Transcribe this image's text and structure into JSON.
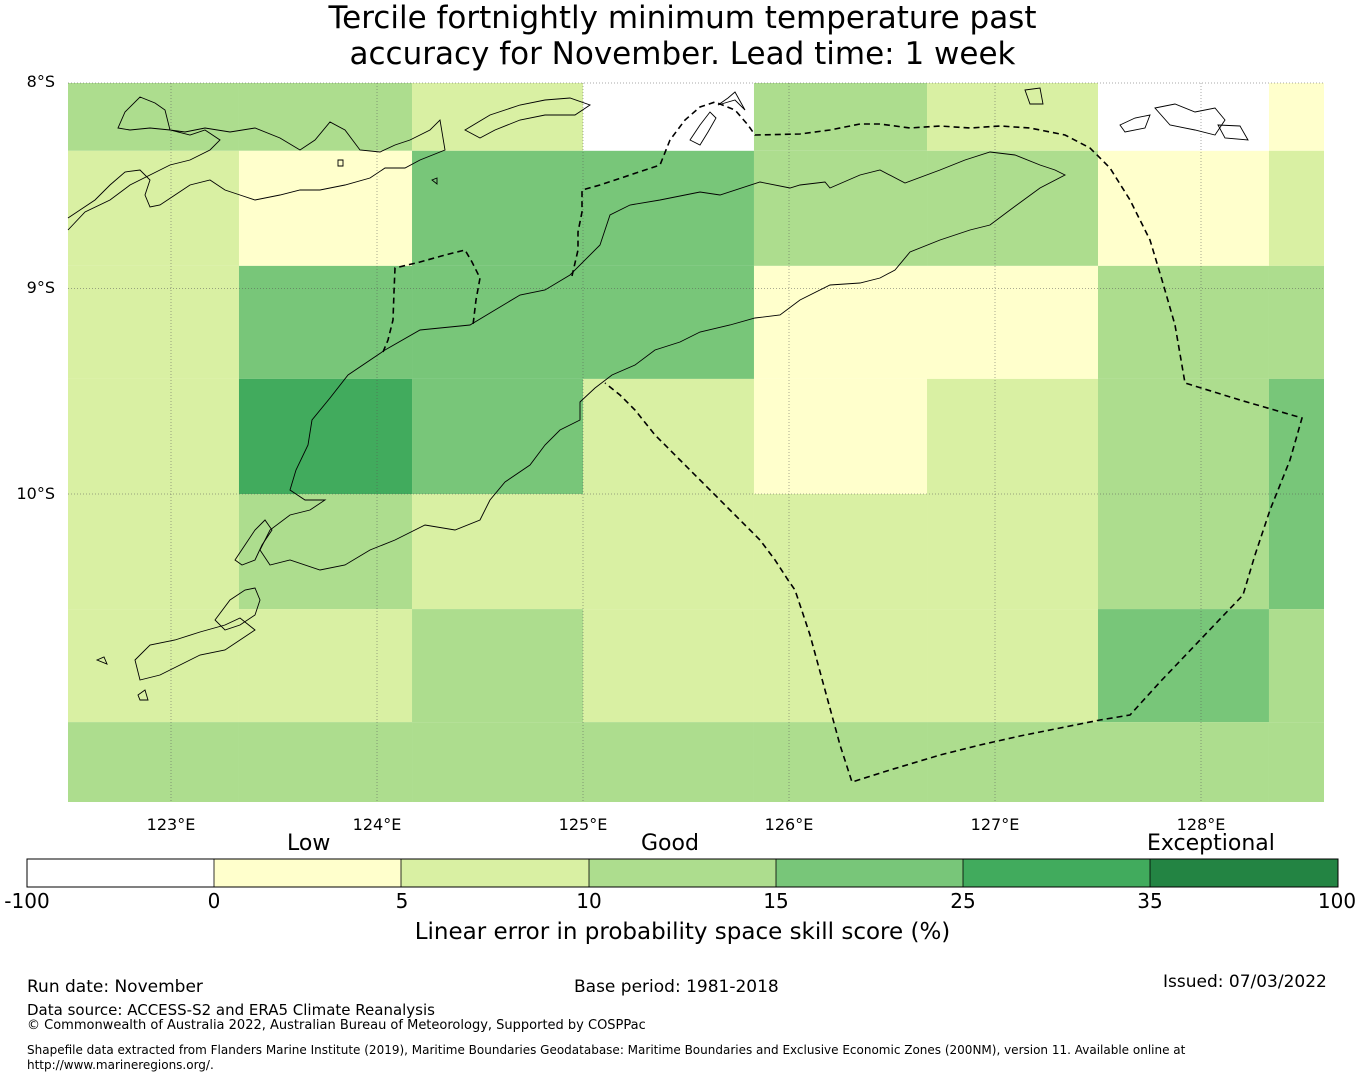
{
  "title": {
    "line1": "Tercile fortnightly minimum temperature past",
    "line2": "accuracy for November. Lead time: 1 week"
  },
  "colors": {
    "white": "#ffffff",
    "c0_5": "#ffffcc",
    "c5_10": "#d9f0a3",
    "c10_15": "#addd8e",
    "c15_25": "#78c679",
    "c25_35": "#41ab5d",
    "c35_100": "#238443"
  },
  "chart_data": {
    "type": "heatmap",
    "x_axis": {
      "range_deg_e": [
        122.5,
        128.6
      ],
      "ticks": [
        123,
        124,
        125,
        126,
        127,
        128
      ],
      "tick_labels": [
        "123°E",
        "124°E",
        "125°E",
        "126°E",
        "127°E",
        "128°E"
      ]
    },
    "y_axis": {
      "range_deg": [
        -8,
        -11.5
      ],
      "ticks": [
        -8,
        -9,
        -10
      ],
      "tick_labels": [
        "8°S",
        "9°S",
        "10°S"
      ]
    },
    "cell_size_deg": 0.833,
    "lon_edges": [
      122.5,
      123.33,
      124.17,
      125.0,
      125.83,
      126.67,
      127.5,
      128.33,
      128.6
    ],
    "lat_edges": [
      -8.0,
      -8.33,
      -8.89,
      -9.44,
      -10.0,
      -10.56,
      -11.11,
      -11.5
    ],
    "grid_values_skill_pct": [
      [
        12.5,
        12.5,
        7.5,
        null,
        12.5,
        7.5,
        null,
        2.5
      ],
      [
        7.5,
        2.5,
        20,
        20,
        12.5,
        12.5,
        2.5,
        7.5
      ],
      [
        7.5,
        20,
        20,
        20,
        2.5,
        2.5,
        12.5,
        12.5
      ],
      [
        7.5,
        30,
        20,
        7.5,
        2.5,
        7.5,
        12.5,
        20
      ],
      [
        7.5,
        12.5,
        7.5,
        7.5,
        7.5,
        7.5,
        12.5,
        20
      ],
      [
        7.5,
        7.5,
        12.5,
        7.5,
        7.5,
        7.5,
        20,
        12.5
      ],
      [
        12.5,
        12.5,
        12.5,
        12.5,
        12.5,
        12.5,
        12.5,
        12.5
      ]
    ],
    "colorbar": {
      "bounds": [
        -100,
        0,
        5,
        10,
        15,
        25,
        35,
        100
      ],
      "tick_labels": [
        "-100",
        "0",
        "5",
        "10",
        "15",
        "25",
        "35",
        "100"
      ],
      "category_labels": [
        "Low",
        "Good",
        "Exceptional"
      ],
      "label": "Linear error in probability space skill score (%)"
    }
  },
  "footer": {
    "run_date": "Run date: November",
    "base_period": "Base period: 1981-2018",
    "issued": "Issued: 07/03/2022",
    "data_source": "Data source: ACCESS-S2 and ERA5 Climate Reanalysis",
    "copyright": "© Commonwealth of Australia 2022, Australian Bureau of Meteorology, Supported by COSPPac",
    "shapefile_line1": "Shapefile data extracted from Flanders Marine Institute (2019), Maritime Boundaries Geodatabase: Maritime Boundaries and Exclusive Economic Zones (200NM), version 11. Available online at",
    "shapefile_line2": "http://www.marineregions.org/."
  }
}
